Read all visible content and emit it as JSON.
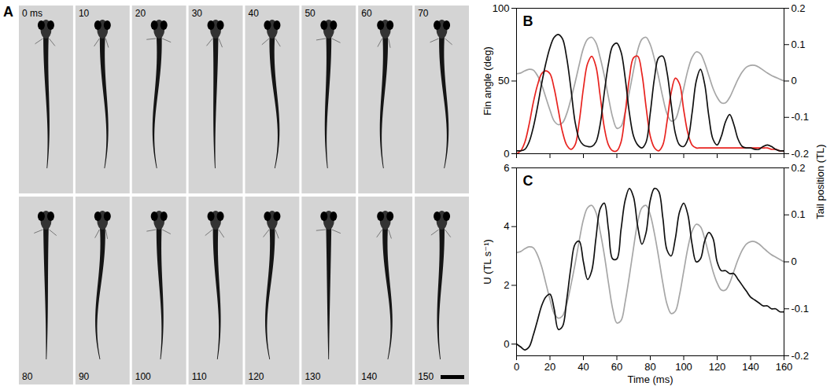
{
  "chart_data": [
    {
      "type": "image_sequence",
      "panel": "A",
      "frames": [
        "0 ms",
        "10",
        "20",
        "30",
        "40",
        "50",
        "60",
        "70",
        "80",
        "90",
        "100",
        "110",
        "120",
        "130",
        "140",
        "150"
      ]
    },
    {
      "type": "line",
      "panel": "B",
      "ylabel": "Fin angle (deg)",
      "y2label": "Tail position (TL)",
      "tick_labels": "y",
      "xlim": [
        0,
        160
      ],
      "xticks": [
        0,
        20,
        40,
        60,
        80,
        100,
        120,
        140,
        160
      ],
      "ylim": [
        0,
        100
      ],
      "yticks": [
        0,
        50,
        100
      ],
      "y2lim": [
        -0.2,
        0.2
      ],
      "y2ticks": [
        -0.2,
        -0.1,
        0,
        0.1,
        0.2
      ],
      "x": [
        0,
        2.5,
        5,
        7.5,
        10,
        12.5,
        15,
        17.5,
        20,
        22.5,
        25,
        27.5,
        30,
        32.5,
        35,
        37.5,
        40,
        42.5,
        45,
        47.5,
        50,
        52.5,
        55,
        57.5,
        60,
        62.5,
        65,
        67.5,
        70,
        72.5,
        75,
        77.5,
        80,
        82.5,
        85,
        87.5,
        90,
        92.5,
        95,
        97.5,
        100,
        102.5,
        105,
        107.5,
        110,
        112.5,
        115,
        117.5,
        120,
        122.5,
        125,
        127.5,
        130,
        132.5,
        135,
        137.5,
        140,
        142.5,
        145,
        147.5,
        150,
        152.5,
        155,
        157.5,
        160
      ],
      "series": [
        {
          "color": "#a6a6a6",
          "axis": "y2",
          "values": [
            0.02,
            0.022,
            0.028,
            0.032,
            0.03,
            0.015,
            -0.01,
            -0.045,
            -0.08,
            -0.11,
            -0.12,
            -0.115,
            -0.09,
            -0.05,
            -0.005,
            0.045,
            0.09,
            0.115,
            0.12,
            0.105,
            0.065,
            0.015,
            -0.045,
            -0.1,
            -0.13,
            -0.125,
            -0.085,
            -0.03,
            0.03,
            0.085,
            0.115,
            0.12,
            0.1,
            0.06,
            0.01,
            -0.045,
            -0.09,
            -0.11,
            -0.105,
            -0.07,
            -0.02,
            0.03,
            0.065,
            0.08,
            0.075,
            0.05,
            0.015,
            -0.02,
            -0.045,
            -0.06,
            -0.06,
            -0.045,
            -0.02,
            0.005,
            0.025,
            0.038,
            0.043,
            0.043,
            0.038,
            0.03,
            0.022,
            0.015,
            0.01,
            0.005,
            0
          ]
        },
        {
          "color": "#e8231f",
          "values": [
            0,
            2,
            8,
            20,
            35,
            47,
            55,
            57,
            55,
            45,
            30,
            15,
            6,
            3,
            6,
            22,
            45,
            62,
            67,
            60,
            40,
            18,
            6,
            2,
            2,
            8,
            28,
            52,
            66,
            67,
            55,
            32,
            12,
            4,
            2,
            6,
            22,
            42,
            52,
            48,
            30,
            14,
            6,
            4,
            4,
            4,
            4,
            4,
            4,
            4,
            4,
            4,
            4,
            4,
            4,
            4,
            4,
            4,
            4,
            4,
            4,
            3,
            3,
            2,
            2
          ]
        },
        {
          "color": "#111111",
          "values": [
            2,
            2,
            3,
            8,
            18,
            32,
            48,
            62,
            73,
            80,
            82,
            79,
            66,
            45,
            22,
            10,
            6,
            5,
            5,
            8,
            20,
            42,
            62,
            74,
            76,
            70,
            52,
            28,
            12,
            6,
            4,
            8,
            28,
            52,
            66,
            67,
            56,
            34,
            14,
            6,
            5,
            10,
            28,
            50,
            58,
            48,
            26,
            10,
            6,
            12,
            22,
            27,
            20,
            10,
            5,
            4,
            4,
            3,
            3,
            5,
            6,
            5,
            3,
            2,
            2
          ]
        }
      ]
    },
    {
      "type": "line",
      "panel": "C",
      "xlabel": "Time (ms)",
      "ylabel": "U (TL s⁻¹)",
      "xlim": [
        0,
        160
      ],
      "xticks": [
        0,
        20,
        40,
        60,
        80,
        100,
        120,
        140,
        160
      ],
      "ylim": [
        -0.4,
        6
      ],
      "yticks": [
        0,
        2,
        4,
        6
      ],
      "y2lim": [
        -0.2,
        0.2
      ],
      "y2ticks": [
        -0.2,
        -0.1,
        0,
        0.1,
        0.2
      ],
      "x": [
        0,
        2.5,
        5,
        7.5,
        10,
        12.5,
        15,
        17.5,
        20,
        22.5,
        25,
        27.5,
        30,
        32.5,
        35,
        37.5,
        40,
        42.5,
        45,
        47.5,
        50,
        52.5,
        55,
        57.5,
        60,
        62.5,
        65,
        67.5,
        70,
        72.5,
        75,
        77.5,
        80,
        82.5,
        85,
        87.5,
        90,
        92.5,
        95,
        97.5,
        100,
        102.5,
        105,
        107.5,
        110,
        112.5,
        115,
        117.5,
        120,
        122.5,
        125,
        127.5,
        130,
        132.5,
        135,
        137.5,
        140,
        142.5,
        145,
        147.5,
        150,
        152.5,
        155,
        157.5,
        160
      ],
      "series": [
        {
          "color": "#a6a6a6",
          "axis": "y2",
          "values": [
            0.02,
            0.022,
            0.028,
            0.032,
            0.03,
            0.015,
            -0.01,
            -0.045,
            -0.08,
            -0.11,
            -0.12,
            -0.115,
            -0.09,
            -0.05,
            -0.005,
            0.045,
            0.09,
            0.115,
            0.12,
            0.105,
            0.065,
            0.015,
            -0.045,
            -0.1,
            -0.13,
            -0.125,
            -0.085,
            -0.03,
            0.03,
            0.085,
            0.115,
            0.12,
            0.1,
            0.06,
            0.01,
            -0.045,
            -0.09,
            -0.11,
            -0.105,
            -0.07,
            -0.02,
            0.03,
            0.065,
            0.08,
            0.075,
            0.05,
            0.015,
            -0.02,
            -0.045,
            -0.06,
            -0.06,
            -0.045,
            -0.02,
            0.005,
            0.025,
            0.038,
            0.043,
            0.043,
            0.038,
            0.03,
            0.022,
            0.015,
            0.01,
            0.005,
            0
          ]
        },
        {
          "color": "#111111",
          "values": [
            0,
            -0.1,
            -0.2,
            -0.1,
            0.3,
            0.8,
            1.3,
            1.6,
            1.7,
            1.2,
            0.5,
            0.6,
            1.5,
            2.6,
            3.4,
            3.5,
            2.8,
            2.2,
            2.5,
            3.6,
            4.6,
            4.8,
            3.9,
            2.9,
            2.9,
            3.9,
            4.9,
            5.3,
            5.0,
            4.0,
            3.4,
            3.8,
            4.9,
            5.3,
            5.2,
            4.3,
            3.2,
            3.0,
            3.6,
            4.5,
            4.8,
            4.4,
            3.4,
            2.8,
            2.9,
            3.5,
            3.8,
            3.6,
            2.8,
            2.5,
            2.5,
            2.4,
            2.4,
            2.2,
            2.0,
            1.8,
            1.6,
            1.5,
            1.4,
            1.3,
            1.3,
            1.2,
            1.2,
            1.1,
            1.1
          ]
        }
      ]
    }
  ]
}
